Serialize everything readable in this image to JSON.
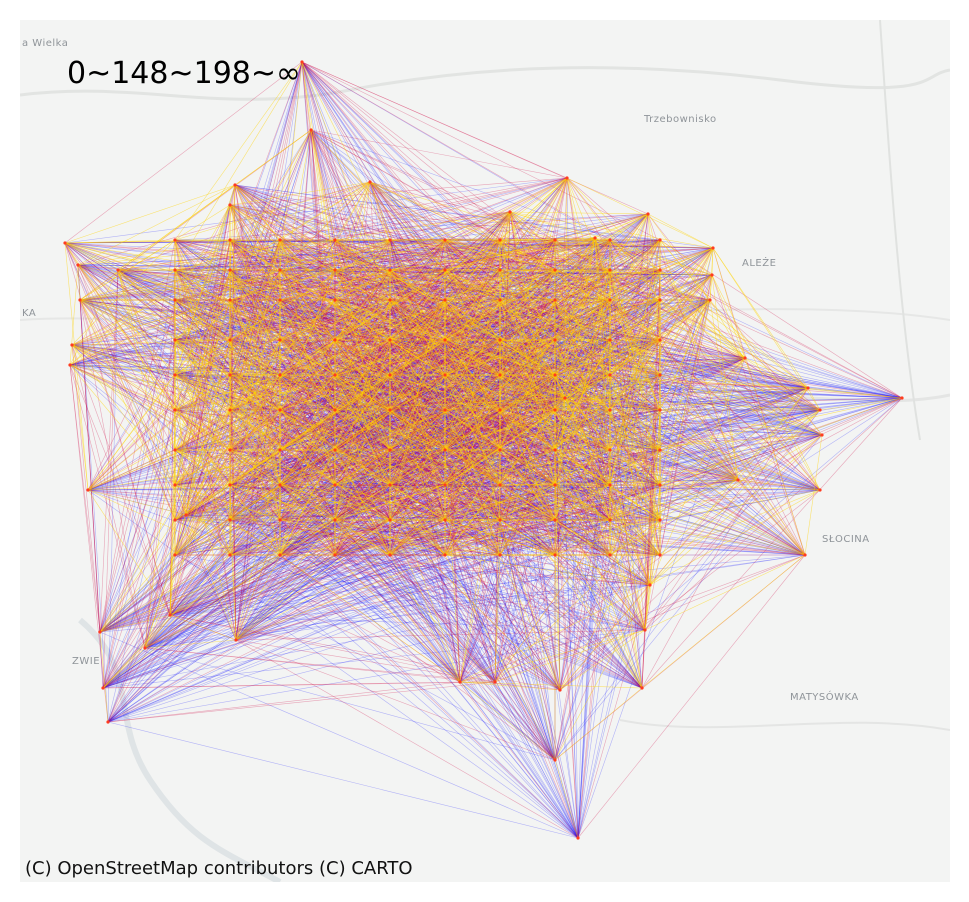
{
  "legend": {
    "range_text": "0~148~198~∞"
  },
  "attribution": "(C) OpenStreetMap contributors (C) CARTO",
  "place_labels": [
    "a Wielka",
    "Trzebownisko",
    "ALEŻE",
    "KA",
    "SŁOCINA",
    "ZWIE",
    "MATYSÓWKA"
  ],
  "bins": [
    {
      "range": "0~148",
      "color": "#ffd400"
    },
    {
      "range": "148~198",
      "color": "#d0104a"
    },
    {
      "range": "198~∞",
      "color": "#1a1aff"
    }
  ]
}
